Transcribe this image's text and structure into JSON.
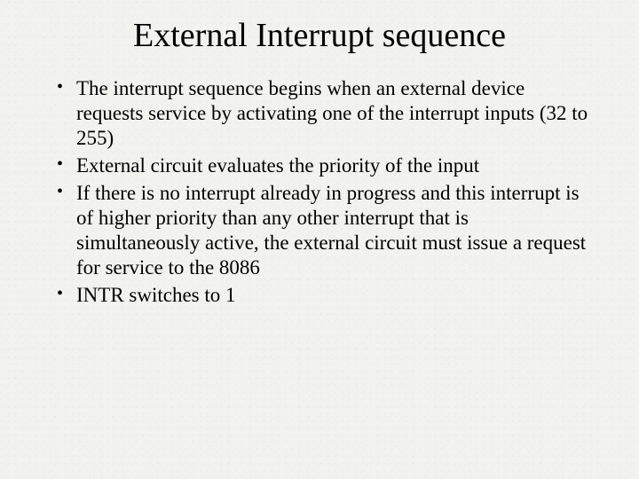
{
  "slide": {
    "title": "External Interrupt sequence",
    "title_fontsize": 38,
    "body_fontsize": 23,
    "background_color": "#f2f2ef",
    "text_color": "#000000",
    "bullets": [
      "The interrupt sequence begins when an external device requests service by activating one of the interrupt inputs (32 to 255)",
      "External circuit evaluates the priority of the input",
      "If there is no interrupt already in progress and this interrupt is of higher priority than any other interrupt that is simultaneously active, the external circuit must issue a request for service to the 8086",
      "INTR switches to 1"
    ]
  }
}
